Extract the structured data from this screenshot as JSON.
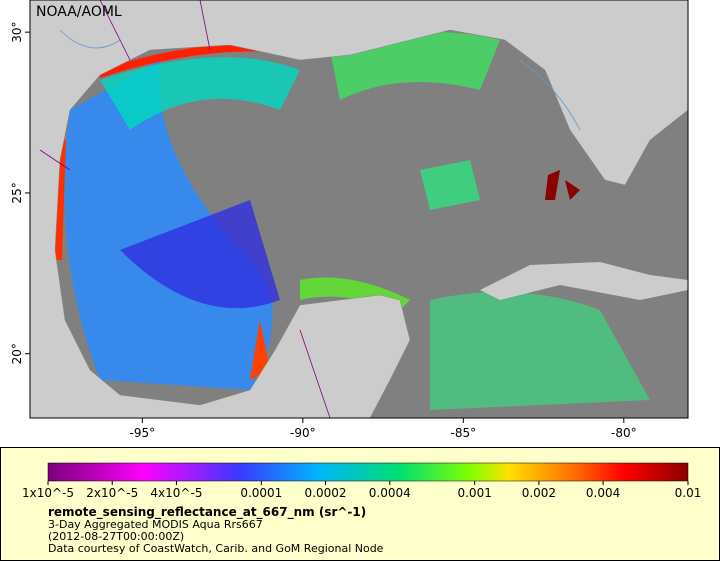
{
  "map": {
    "credit": "NOAA/AOML",
    "xlim": [
      -98.5,
      -78
    ],
    "ylim": [
      18,
      31
    ],
    "xticks": [
      {
        "value": -95,
        "label": "-95°"
      },
      {
        "value": -90,
        "label": "-90°"
      },
      {
        "value": -85,
        "label": "-85°"
      },
      {
        "value": -80,
        "label": "-80°"
      }
    ],
    "yticks": [
      {
        "value": 20,
        "label": "20°"
      },
      {
        "value": 25,
        "label": "25°"
      },
      {
        "value": 30,
        "label": "30°"
      }
    ],
    "colorbar": {
      "log_scale": true,
      "lim": [
        1e-05,
        0.01
      ],
      "ticks": [
        {
          "value": 1e-05,
          "label": "1x10^-5"
        },
        {
          "value": 2e-05,
          "label": "2x10^-5"
        },
        {
          "value": 4e-05,
          "label": "4x10^-5"
        },
        {
          "value": 0.0001,
          "label": "0.0001"
        },
        {
          "value": 0.0002,
          "label": "0.0002"
        },
        {
          "value": 0.0004,
          "label": "0.0004"
        },
        {
          "value": 0.001,
          "label": "0.001"
        },
        {
          "value": 0.002,
          "label": "0.002"
        },
        {
          "value": 0.004,
          "label": "0.004"
        },
        {
          "value": 0.01,
          "label": "0.01"
        }
      ]
    },
    "legend": {
      "variable": "remote_sensing_reflectance_at_667_nm (sr^-1)",
      "lines": [
        "3-Day Aggregated MODIS Aqua Rrs667",
        "(2012-08-27T00:00:00Z)",
        "Data courtesy of CoastWatch, Carib. and GoM Regional Node"
      ]
    }
  }
}
